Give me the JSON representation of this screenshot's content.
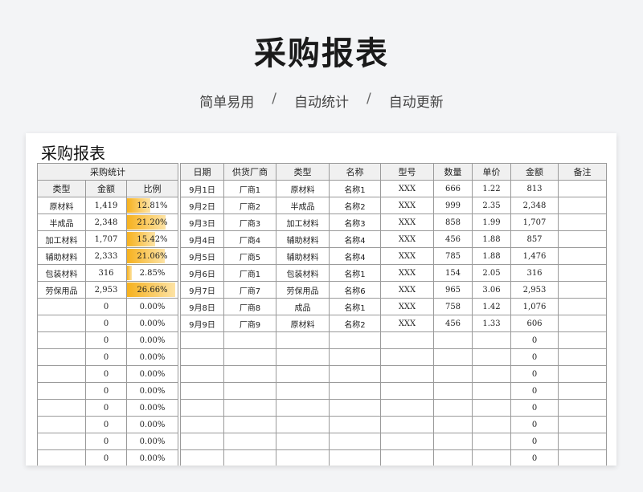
{
  "page": {
    "title": "采购报表",
    "subtitle_items": [
      "简单易用",
      "自动统计",
      "自动更新"
    ],
    "separator": "/"
  },
  "sheet": {
    "title": "采购报表"
  },
  "colors": {
    "bar_start": "#f6b11e",
    "bar_end": "#fde3a5",
    "header_bg": "#f0f0f0"
  },
  "summary": {
    "group_header": "采购统计",
    "columns": [
      "类型",
      "金额",
      "比例"
    ],
    "rows": [
      {
        "type": "原材料",
        "amount": "1,419",
        "ratio": "12.81%",
        "ratio_value": 12.81
      },
      {
        "type": "半成品",
        "amount": "2,348",
        "ratio": "21.20%",
        "ratio_value": 21.2
      },
      {
        "type": "加工材料",
        "amount": "1,707",
        "ratio": "15.42%",
        "ratio_value": 15.42
      },
      {
        "type": "辅助材料",
        "amount": "2,333",
        "ratio": "21.06%",
        "ratio_value": 21.06
      },
      {
        "type": "包装材料",
        "amount": "316",
        "ratio": "2.85%",
        "ratio_value": 2.85
      },
      {
        "type": "劳保用品",
        "amount": "2,953",
        "ratio": "26.66%",
        "ratio_value": 26.66
      },
      {
        "type": "",
        "amount": "0",
        "ratio": "0.00%",
        "ratio_value": 0
      },
      {
        "type": "",
        "amount": "0",
        "ratio": "0.00%",
        "ratio_value": 0
      },
      {
        "type": "",
        "amount": "0",
        "ratio": "0.00%",
        "ratio_value": 0
      },
      {
        "type": "",
        "amount": "0",
        "ratio": "0.00%",
        "ratio_value": 0
      },
      {
        "type": "",
        "amount": "0",
        "ratio": "0.00%",
        "ratio_value": 0
      },
      {
        "type": "",
        "amount": "0",
        "ratio": "0.00%",
        "ratio_value": 0
      },
      {
        "type": "",
        "amount": "0",
        "ratio": "0.00%",
        "ratio_value": 0
      },
      {
        "type": "",
        "amount": "0",
        "ratio": "0.00%",
        "ratio_value": 0
      },
      {
        "type": "",
        "amount": "0",
        "ratio": "0.00%",
        "ratio_value": 0
      },
      {
        "type": "",
        "amount": "0",
        "ratio": "0.00%",
        "ratio_value": 0
      }
    ]
  },
  "detail": {
    "columns": [
      "日期",
      "供货厂商",
      "类型",
      "名称",
      "型号",
      "数量",
      "单价",
      "金额",
      "备注"
    ],
    "rows": [
      [
        "9月1日",
        "厂商1",
        "原材料",
        "名称1",
        "XXX",
        "666",
        "1.22",
        "813",
        ""
      ],
      [
        "9月2日",
        "厂商2",
        "半成品",
        "名称2",
        "XXX",
        "999",
        "2.35",
        "2,348",
        ""
      ],
      [
        "9月3日",
        "厂商3",
        "加工材料",
        "名称3",
        "XXX",
        "858",
        "1.99",
        "1,707",
        ""
      ],
      [
        "9月4日",
        "厂商4",
        "辅助材料",
        "名称4",
        "XXX",
        "456",
        "1.88",
        "857",
        ""
      ],
      [
        "9月5日",
        "厂商5",
        "辅助材料",
        "名称4",
        "XXX",
        "785",
        "1.88",
        "1,476",
        ""
      ],
      [
        "9月6日",
        "厂商1",
        "包装材料",
        "名称1",
        "XXX",
        "154",
        "2.05",
        "316",
        ""
      ],
      [
        "9月7日",
        "厂商7",
        "劳保用品",
        "名称6",
        "XXX",
        "965",
        "3.06",
        "2,953",
        ""
      ],
      [
        "9月8日",
        "厂商8",
        "成品",
        "名称1",
        "XXX",
        "758",
        "1.42",
        "1,076",
        ""
      ],
      [
        "9月9日",
        "厂商9",
        "原材料",
        "名称2",
        "XXX",
        "456",
        "1.33",
        "606",
        ""
      ],
      [
        "",
        "",
        "",
        "",
        "",
        "",
        "",
        "0",
        ""
      ],
      [
        "",
        "",
        "",
        "",
        "",
        "",
        "",
        "0",
        ""
      ],
      [
        "",
        "",
        "",
        "",
        "",
        "",
        "",
        "0",
        ""
      ],
      [
        "",
        "",
        "",
        "",
        "",
        "",
        "",
        "0",
        ""
      ],
      [
        "",
        "",
        "",
        "",
        "",
        "",
        "",
        "0",
        ""
      ],
      [
        "",
        "",
        "",
        "",
        "",
        "",
        "",
        "0",
        ""
      ],
      [
        "",
        "",
        "",
        "",
        "",
        "",
        "",
        "0",
        ""
      ],
      [
        "",
        "",
        "",
        "",
        "",
        "",
        "",
        "0",
        ""
      ]
    ]
  }
}
